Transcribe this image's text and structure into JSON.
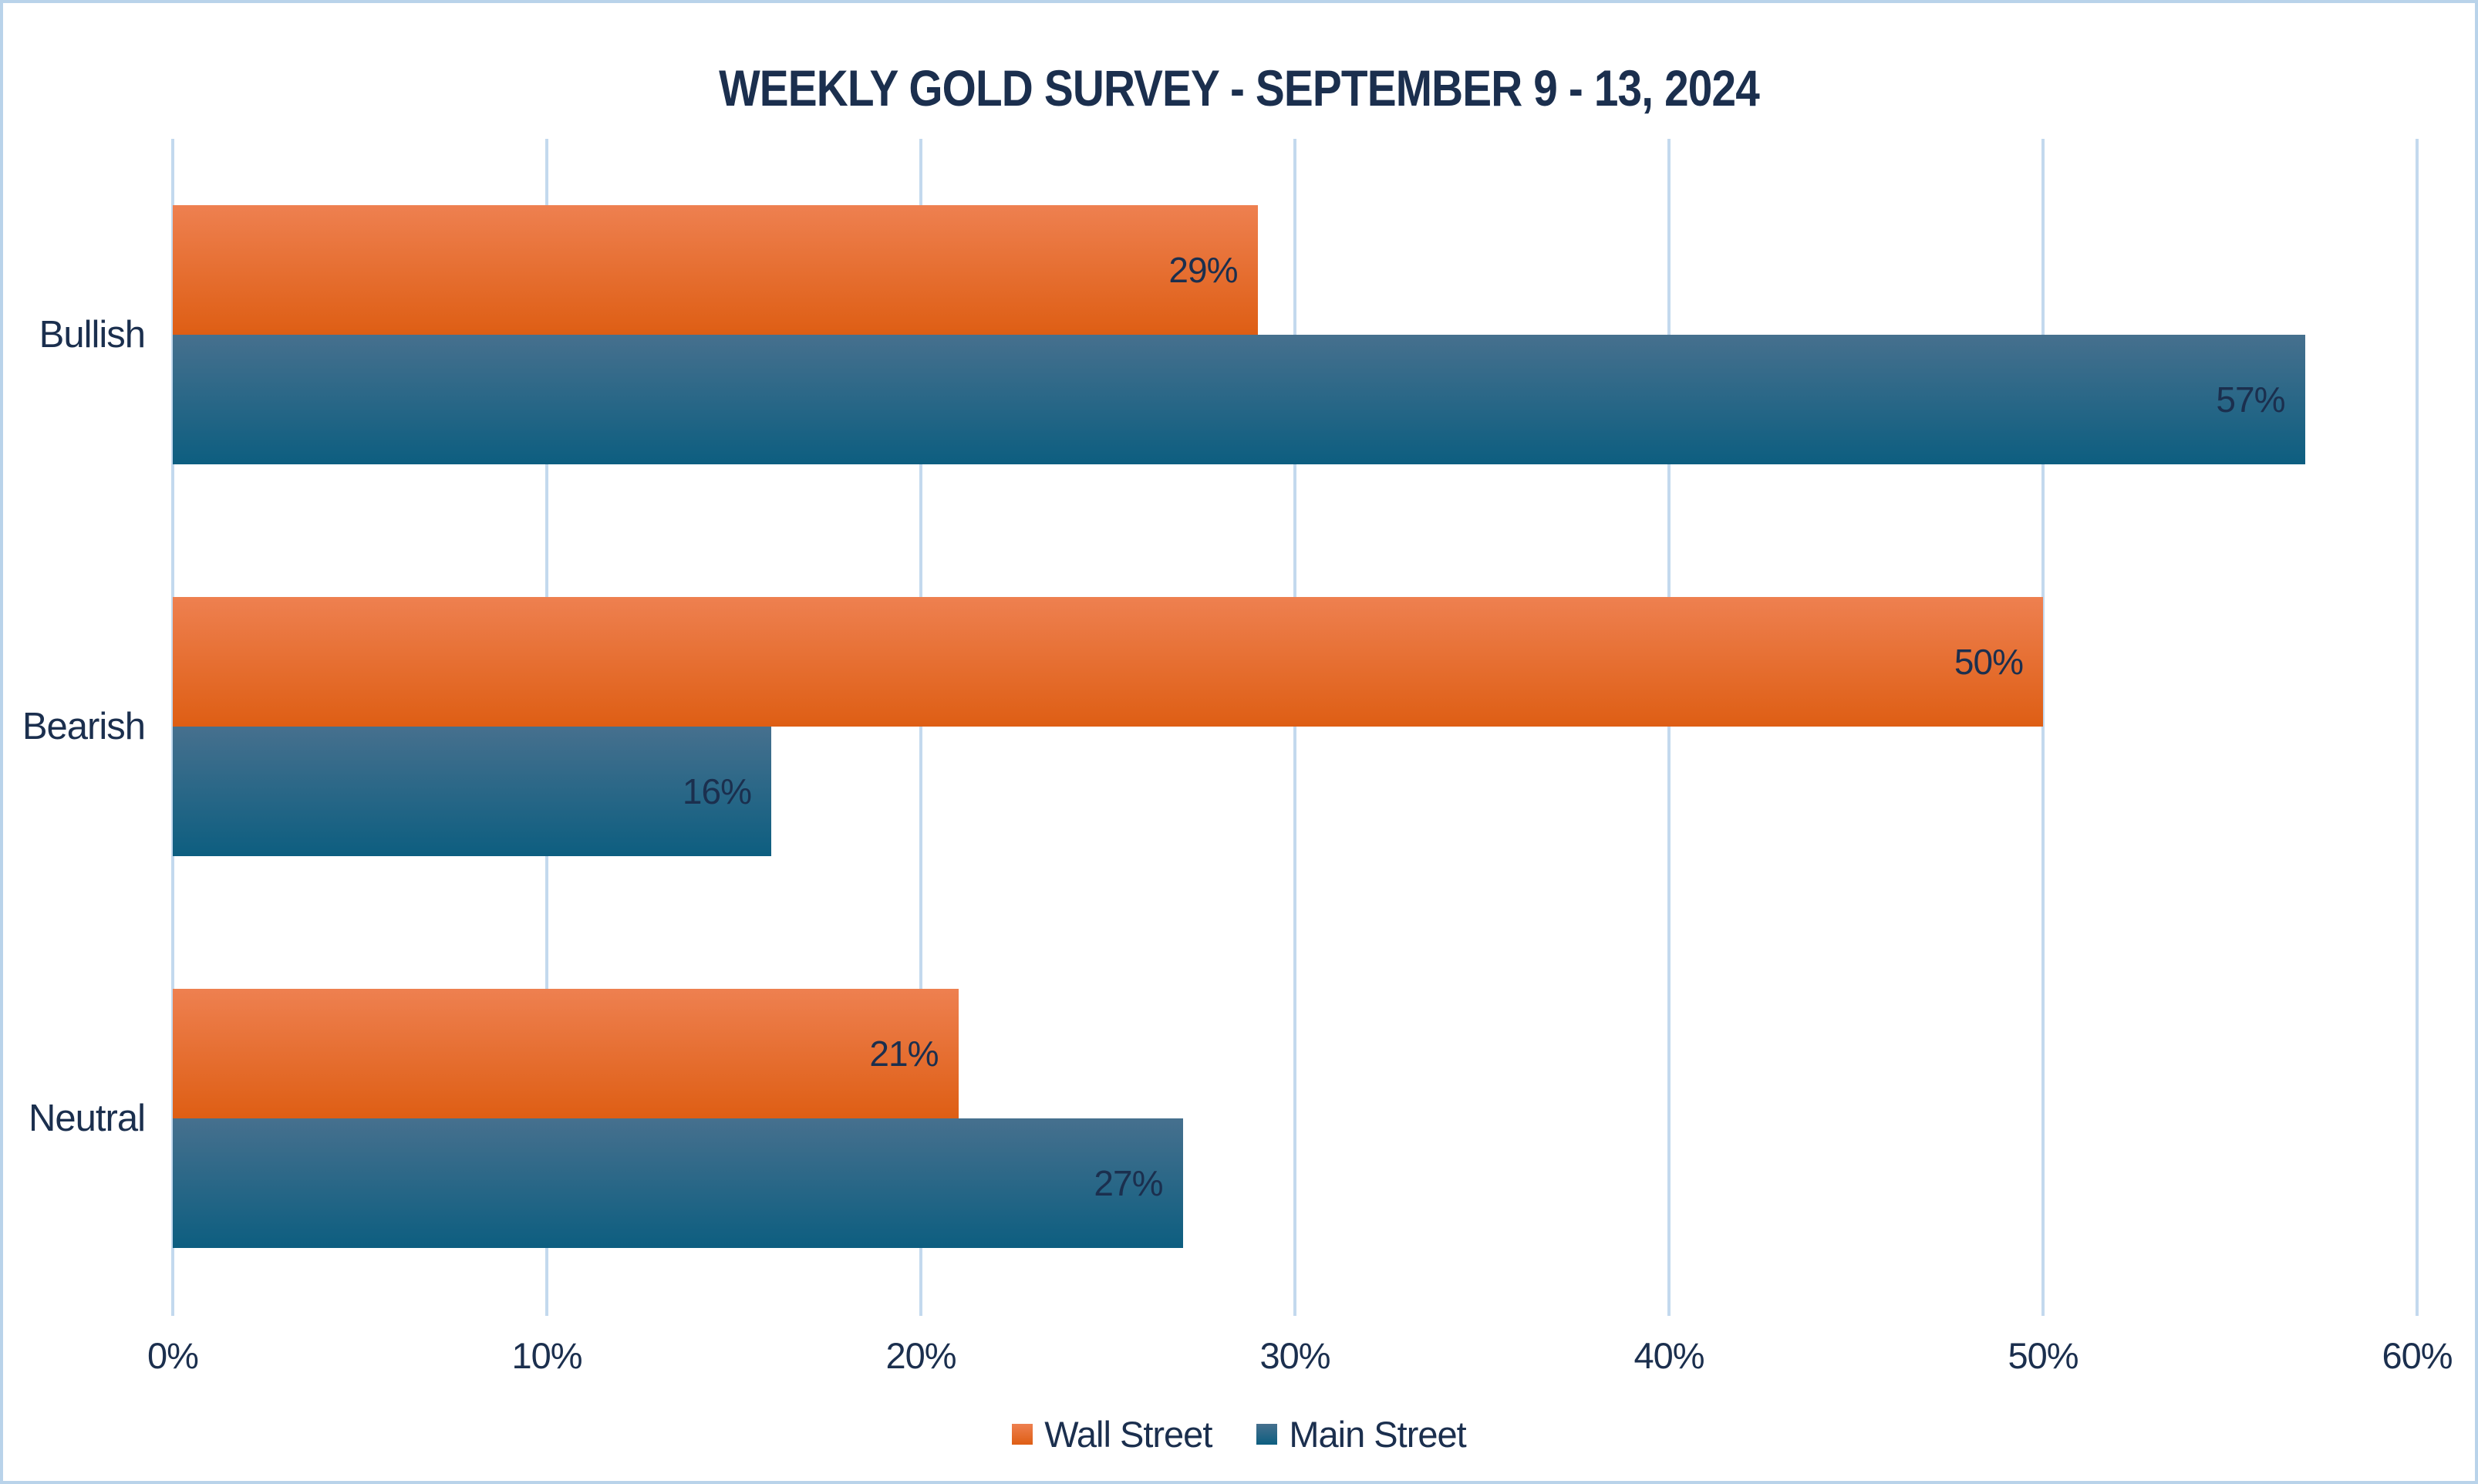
{
  "chart_data": {
    "type": "bar",
    "orientation": "horizontal",
    "title": "WEEKLY GOLD SURVEY - SEPTEMBER 9 - 13, 2024",
    "categories": [
      "Bullish",
      "Bearish",
      "Neutral"
    ],
    "series": [
      {
        "name": "Wall Street",
        "values": [
          29,
          50,
          21
        ],
        "labels": [
          "29%",
          "50%",
          "21%"
        ],
        "color_top": "#ee8050",
        "color_bottom": "#de5e14"
      },
      {
        "name": "Main Street",
        "values": [
          57,
          16,
          27
        ],
        "labels": [
          "57%",
          "16%",
          "27%"
        ],
        "color_top": "#46708e",
        "color_bottom": "#0d5e80"
      }
    ],
    "value_suffix": "%",
    "xlim": [
      0,
      60
    ],
    "x_ticks": [
      "0%",
      "10%",
      "20%",
      "30%",
      "40%",
      "50%",
      "60%"
    ],
    "x_tick_values": [
      0,
      10,
      20,
      30,
      40,
      50,
      60
    ],
    "grid": "vertical",
    "data_labels": "inside-end",
    "legend_position": "bottom"
  },
  "colors": {
    "background": "#ffffff",
    "frame_border": "#b9d3ea",
    "gridline": "#c3d9ee",
    "text": "#1b2f4e"
  }
}
